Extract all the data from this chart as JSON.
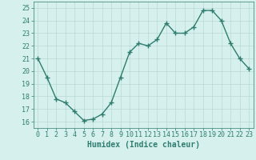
{
  "x": [
    0,
    1,
    2,
    3,
    4,
    5,
    6,
    7,
    8,
    9,
    10,
    11,
    12,
    13,
    14,
    15,
    16,
    17,
    18,
    19,
    20,
    21,
    22,
    23
  ],
  "y": [
    21.0,
    19.5,
    17.8,
    17.5,
    16.8,
    16.1,
    16.2,
    16.6,
    17.5,
    19.5,
    21.5,
    22.2,
    22.0,
    22.5,
    23.8,
    23.0,
    23.0,
    23.5,
    24.8,
    24.8,
    24.0,
    22.2,
    21.0,
    20.2
  ],
  "line_color": "#2e7d6e",
  "marker": "+",
  "marker_size": 4,
  "marker_lw": 1.0,
  "line_width": 1.0,
  "bg_color": "#d6f0ee",
  "grid_color": "#b8d8d4",
  "tick_color": "#2e7d6e",
  "spine_color": "#2e7d6e",
  "ylabel_vals": [
    16,
    17,
    18,
    19,
    20,
    21,
    22,
    23,
    24,
    25
  ],
  "ylim": [
    15.5,
    25.5
  ],
  "xlim": [
    -0.5,
    23.5
  ],
  "xlabel": "Humidex (Indice chaleur)",
  "xlabel_fontsize": 7,
  "tick_fontsize": 6
}
